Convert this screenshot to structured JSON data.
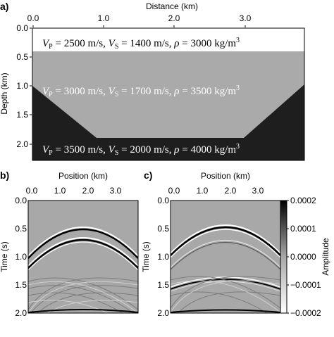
{
  "panel_a": {
    "label": "a)",
    "x_title": "Distance (km)",
    "x_ticks": [
      "0.0",
      "1.0",
      "2.0",
      "3.0"
    ],
    "y_title": "Depth (km)",
    "y_ticks": [
      "0.0",
      "0.5",
      "1.0",
      "1.5",
      "2.0"
    ],
    "layers": [
      {
        "vp": "2500",
        "vs": "1400",
        "rho": "3000",
        "color": "#ffffff",
        "text_color": "#000000"
      },
      {
        "vp": "3000",
        "vs": "1700",
        "rho": "3500",
        "color": "#aaaaaa",
        "text_color": "#ffffff"
      },
      {
        "vp": "3500",
        "vs": "2000",
        "rho": "4000",
        "color": "#1e1e1e",
        "text_color": "#ffffff"
      }
    ],
    "units": {
      "velocity": "m/s",
      "density": "kg/m",
      "density_exp": "3"
    }
  },
  "panel_b": {
    "label": "b)",
    "x_title": "Position (km)",
    "x_ticks": [
      "0.0",
      "1.0",
      "2.0",
      "3.0"
    ],
    "y_title": "Time (s)",
    "y_ticks": [
      "0.0",
      "0.5",
      "1.0",
      "1.5",
      "2.0"
    ]
  },
  "panel_c": {
    "label": "c)",
    "x_title": "Position (km)",
    "x_ticks": [
      "0.0",
      "1.0",
      "2.0",
      "3.0"
    ],
    "y_title": "Time (s)",
    "y_ticks": [
      "0.0",
      "0.5",
      "1.0",
      "1.5",
      "2.0"
    ]
  },
  "colorbar": {
    "title": "Amplitude",
    "ticks": [
      "0.0002",
      "0.0001",
      "0.0000",
      "−0.0001",
      "−0.0002"
    ]
  },
  "colors": {
    "background_gray": "#a8a8a8",
    "dark": "#1e1e1e"
  }
}
